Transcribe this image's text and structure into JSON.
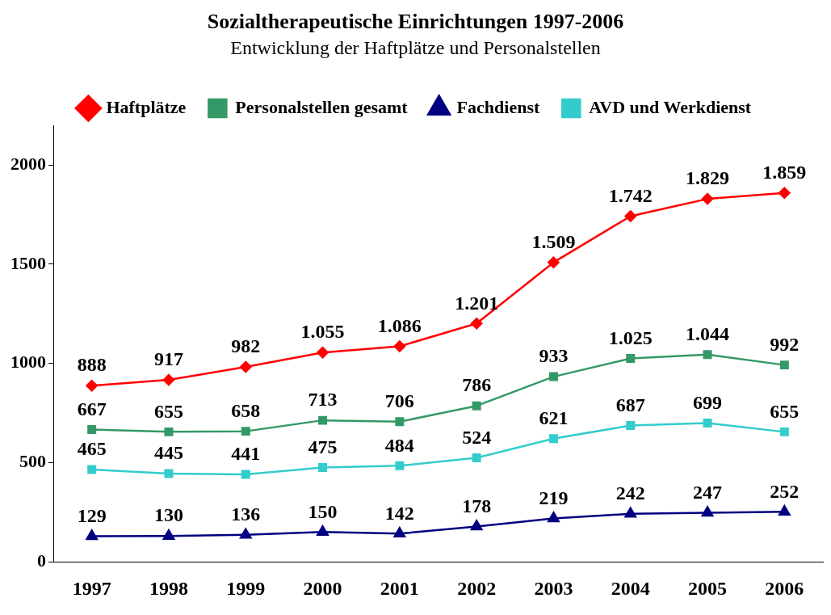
{
  "chart_data": {
    "type": "line",
    "title": "Sozialtherapeutische Einrichtungen 1997-2006",
    "subtitle": "Entwicklung der Haftplätze und Personalstellen",
    "categories": [
      "1997",
      "1998",
      "1999",
      "2000",
      "2001",
      "2002",
      "2003",
      "2004",
      "2005",
      "2006"
    ],
    "series": [
      {
        "name": "Haftplätze",
        "color": "#ff0000",
        "marker": "diamond",
        "values": [
          888,
          917,
          982,
          1055,
          1086,
          1201,
          1509,
          1742,
          1829,
          1859
        ],
        "value_labels": [
          "888",
          "917",
          "982",
          "1.055",
          "1.086",
          "1.201",
          "1.509",
          "1.742",
          "1.829",
          "1.859"
        ]
      },
      {
        "name": "Personalstellen gesamt",
        "color": "#339966",
        "marker": "square",
        "values": [
          667,
          655,
          658,
          713,
          706,
          786,
          933,
          1025,
          1044,
          992
        ],
        "value_labels": [
          "667",
          "655",
          "658",
          "713",
          "706",
          "786",
          "933",
          "1.025",
          "1.044",
          "992"
        ]
      },
      {
        "name": "Fachdienst",
        "color": "#000080",
        "marker": "triangle",
        "values": [
          129,
          130,
          136,
          150,
          142,
          178,
          219,
          242,
          247,
          252
        ],
        "value_labels": [
          "129",
          "130",
          "136",
          "150",
          "142",
          "178",
          "219",
          "242",
          "247",
          "252"
        ]
      },
      {
        "name": "AVD und Werkdienst",
        "color": "#33cccc",
        "marker": "square",
        "values": [
          465,
          445,
          441,
          475,
          484,
          524,
          621,
          687,
          699,
          655
        ],
        "value_labels": [
          "465",
          "445",
          "441",
          "475",
          "484",
          "524",
          "621",
          "687",
          "699",
          "655"
        ]
      }
    ],
    "ylim": [
      0,
      2200
    ],
    "yticks": [
      0,
      500,
      1000,
      1500,
      2000
    ],
    "grid": false,
    "legend": "top",
    "line_style": "solid"
  }
}
